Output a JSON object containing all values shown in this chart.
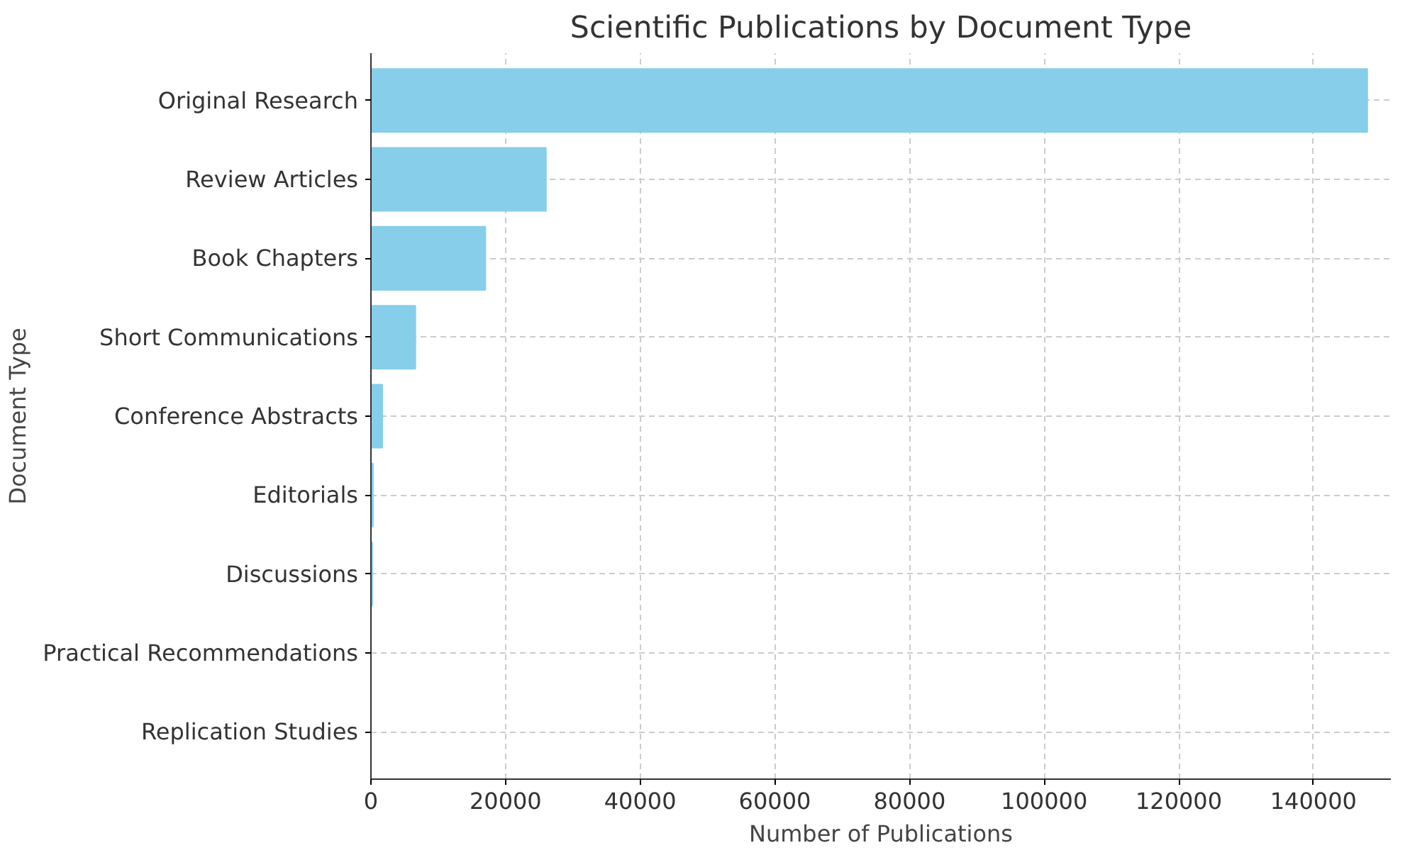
{
  "chart_data": {
    "type": "bar",
    "orientation": "horizontal",
    "title": "Scientific Publications by Document Type",
    "xlabel": "Number of Publications",
    "ylabel": "Document Type",
    "categories": [
      "Original Research",
      "Review Articles",
      "Book Chapters",
      "Short Communications",
      "Conference Abstracts",
      "Editorials",
      "Discussions",
      "Practical Recommendations",
      "Replication Studies"
    ],
    "values": [
      148000,
      26000,
      17000,
      6600,
      1700,
      300,
      200,
      0,
      0
    ],
    "color": "#87ceeb",
    "xlim": [
      0,
      151500
    ],
    "xticks": [
      0,
      20000,
      40000,
      60000,
      80000,
      100000,
      120000,
      140000
    ],
    "grid": true
  }
}
